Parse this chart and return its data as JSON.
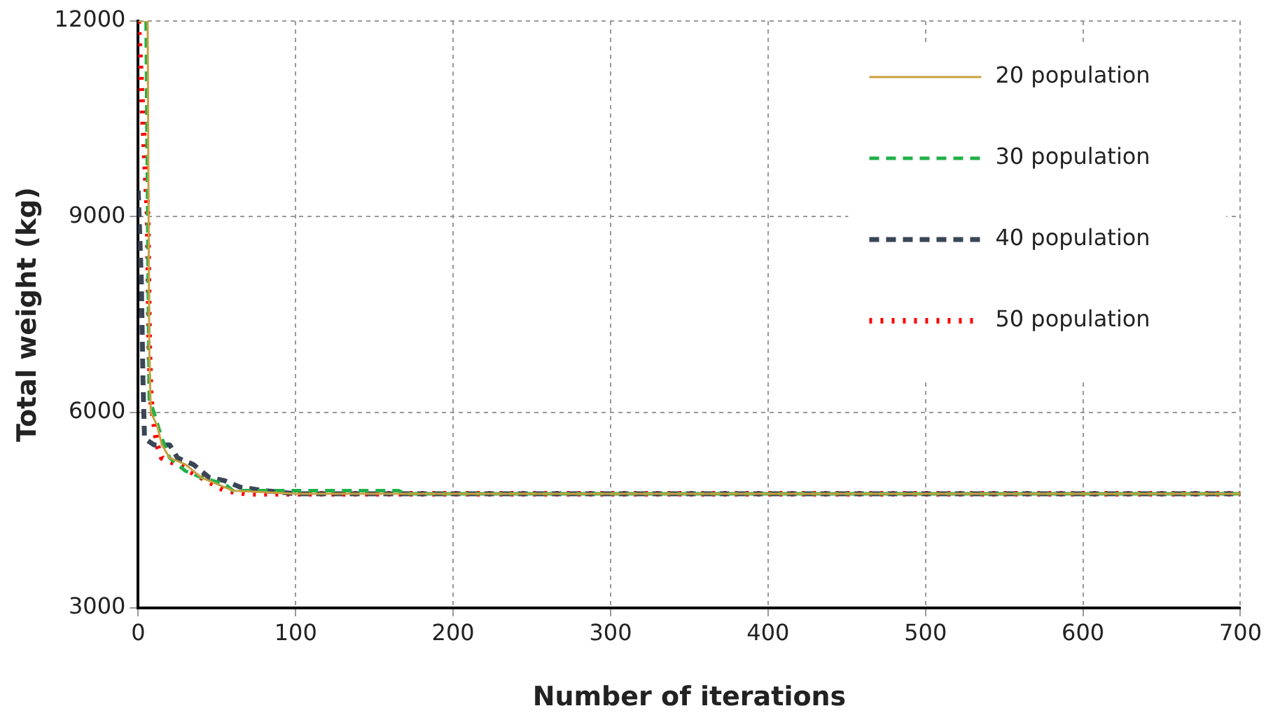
{
  "chart_data": {
    "type": "line",
    "xlabel": "Number of iterations",
    "ylabel": "Total weight (kg)",
    "xlim": [
      0,
      700
    ],
    "xticks": [
      0,
      100,
      200,
      300,
      400,
      500,
      600,
      700
    ],
    "ylim": [
      3000,
      12000
    ],
    "yticks": [
      3000,
      6000,
      9000,
      12000
    ],
    "grid": true,
    "legend": "top right",
    "marker": "none",
    "series": [
      {
        "name": "20 population",
        "color": "#c8a040",
        "line_style": "solid",
        "x": [
          0,
          6,
          7,
          8,
          12,
          15,
          20,
          30,
          40,
          50,
          60,
          100,
          700
        ],
        "values": [
          12000,
          12000,
          7000,
          6000,
          5800,
          5500,
          5300,
          5200,
          5000,
          4900,
          4800,
          4750,
          4750
        ]
      },
      {
        "name": "30 population",
        "color": "#22b04a",
        "line_style": "dashed",
        "x": [
          5,
          6,
          7,
          10,
          15,
          20,
          30,
          40,
          55,
          60,
          165,
          170,
          700
        ],
        "values": [
          12000,
          9000,
          6200,
          6000,
          5600,
          5300,
          5100,
          5000,
          4900,
          4800,
          4800,
          4750,
          4750
        ]
      },
      {
        "name": "40 population",
        "color": "#3a4556",
        "line_style": "dashed",
        "x": [
          0,
          2,
          3,
          4,
          10,
          20,
          25,
          35,
          45,
          55,
          65,
          80,
          100,
          700
        ],
        "values": [
          9400,
          8000,
          6500,
          5600,
          5500,
          5500,
          5300,
          5200,
          5000,
          4950,
          4850,
          4800,
          4750,
          4750
        ]
      },
      {
        "name": "50 population",
        "color": "#ff0000",
        "line_style": "dotted",
        "x": [
          0,
          3,
          6,
          7,
          8,
          12,
          15,
          25,
          40,
          55,
          70,
          700
        ],
        "values": [
          12000,
          10500,
          9000,
          7000,
          6200,
          5500,
          5300,
          5200,
          5000,
          4800,
          4750,
          4750
        ]
      }
    ]
  }
}
